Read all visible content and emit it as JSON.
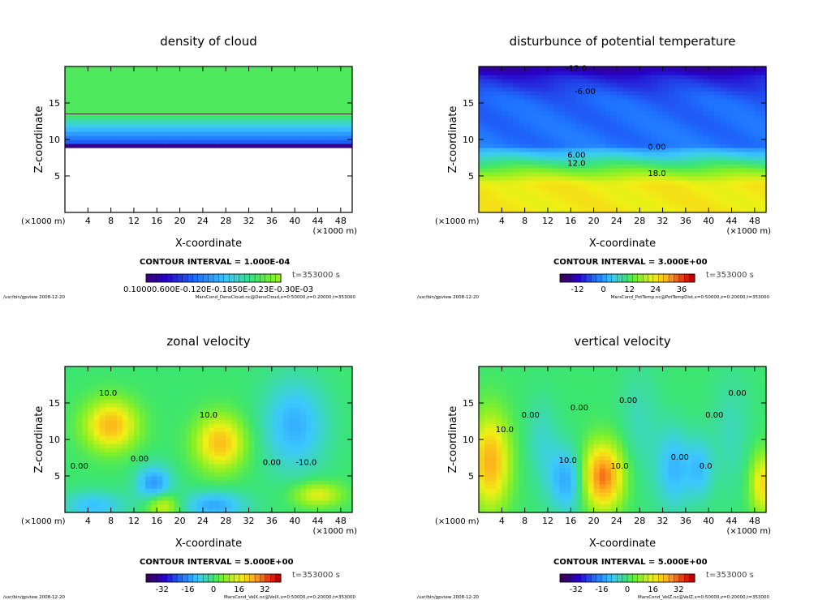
{
  "chart_data": [
    {
      "type": "heatmap",
      "title": "density of cloud",
      "xlabel": "X-coordinate",
      "ylabel": "Z-coordinate",
      "x_unit_note": "(×1000 m)",
      "xlim": [
        0,
        50
      ],
      "ylim": [
        0,
        20
      ],
      "x_ticks": [
        4,
        8,
        12,
        16,
        20,
        24,
        28,
        32,
        36,
        40,
        44,
        48
      ],
      "y_ticks": [
        5,
        10,
        15
      ],
      "contour_labels": [],
      "contour_interval": "CONTOUR INTERVAL = 1.000E-04",
      "time": "t=353000 s",
      "colorbar_labels": [
        "0.1000E-03",
        "0.6000E-03",
        "0.1200E-02",
        "0.1800E-02",
        "0.2300E-02",
        "0.3000E-03"
      ],
      "colorbar_text": "0.10000.600E-0.120E-0.1850E-0.23E-0.30E-03",
      "footer_left": "/usr/bin/gpview   2008-12-20",
      "footer_right": "MarsCond_DensCloud.nc@DensCloud,x=0:50000,z=0:20000,t=353000",
      "features": {
        "cloud_top_z": 13.5,
        "cloud_base_z": 9.0,
        "clear_below_z": 9.0
      }
    },
    {
      "type": "heatmap",
      "title": "disturbunce of potential temperature",
      "xlabel": "X-coordinate",
      "ylabel": "Z-coordinate",
      "x_unit_note": "(×1000 m)",
      "xlim": [
        0,
        50
      ],
      "ylim": [
        0,
        20
      ],
      "x_ticks": [
        4,
        8,
        12,
        16,
        20,
        24,
        28,
        32,
        36,
        40,
        44,
        48
      ],
      "y_ticks": [
        5,
        10,
        15
      ],
      "contour_labels": [
        {
          "text": "-12.0",
          "x": 17,
          "z": 19.4
        },
        {
          "text": "-6.00",
          "x": 18.5,
          "z": 16.2
        },
        {
          "text": "0.00",
          "x": 31,
          "z": 8.6
        },
        {
          "text": "6.00",
          "x": 17,
          "z": 7.5
        },
        {
          "text": "12.0",
          "x": 17,
          "z": 6.4
        },
        {
          "text": "18.0",
          "x": 31,
          "z": 5.0
        }
      ],
      "contour_interval": "CONTOUR INTERVAL = 3.000E+00",
      "time": "t=353000 s",
      "colorbar_labels": [
        "-12",
        "0",
        "12",
        "24",
        "36"
      ],
      "colorbar_range": [
        -20,
        42
      ],
      "footer_left": "/usr/bin/gpview   2008-12-20",
      "footer_right": "MarsCond_PotTemp.nc@PotTempDist,x=0:50000,z=0:20000,t=353000",
      "profile": [
        {
          "z": 0,
          "value": 24
        },
        {
          "z": 4,
          "value": 24
        },
        {
          "z": 5.2,
          "value": 18
        },
        {
          "z": 6.4,
          "value": 12
        },
        {
          "z": 7.6,
          "value": 6
        },
        {
          "z": 8.8,
          "value": 0
        },
        {
          "z": 9.2,
          "value": -4
        },
        {
          "z": 15,
          "value": -5
        },
        {
          "z": 16.2,
          "value": -6
        },
        {
          "z": 18.5,
          "value": -10
        },
        {
          "z": 20,
          "value": -16
        }
      ]
    },
    {
      "type": "heatmap",
      "title": "zonal velocity",
      "xlabel": "X-coordinate",
      "ylabel": "Z-coordinate",
      "x_unit_note": "(×1000 m)",
      "xlim": [
        0,
        50
      ],
      "ylim": [
        0,
        20
      ],
      "x_ticks": [
        4,
        8,
        12,
        16,
        20,
        24,
        28,
        32,
        36,
        40,
        44,
        48
      ],
      "y_ticks": [
        5,
        10,
        15
      ],
      "contour_labels": [
        {
          "text": "10.0",
          "x": 7.5,
          "z": 16
        },
        {
          "text": "10.0",
          "x": 25,
          "z": 13
        },
        {
          "text": "0.00",
          "x": 2.5,
          "z": 6
        },
        {
          "text": "0.00",
          "x": 13,
          "z": 7
        },
        {
          "text": "0.00",
          "x": 36,
          "z": 6.5
        },
        {
          "text": "-10.0",
          "x": 42,
          "z": 6.5
        }
      ],
      "contour_interval": "CONTOUR INTERVAL = 5.000E+00",
      "time": "t=353000 s",
      "colorbar_labels": [
        "-32",
        "-16",
        "0",
        "16",
        "32"
      ],
      "colorbar_range": [
        -42,
        42
      ],
      "footer_left": "/usr/bin/gpview   2008-12-20",
      "footer_right": "MarsCond_VelX.nc@VelX,x=0:50000,z=0:20000,t=353000",
      "blobs": [
        {
          "x": 8,
          "z": 12,
          "sx": 3.2,
          "sz": 2.4,
          "value": 25
        },
        {
          "x": 27,
          "z": 9.6,
          "sx": 3.0,
          "sz": 2.6,
          "value": 24
        },
        {
          "x": 15.5,
          "z": 4,
          "sx": 2.2,
          "sz": 1.8,
          "value": -16
        },
        {
          "x": 40,
          "z": 12,
          "sx": 4,
          "sz": 4.5,
          "value": -13
        },
        {
          "x": 5,
          "z": 1,
          "sx": 4,
          "sz": 1.4,
          "value": -11
        },
        {
          "x": 26,
          "z": 1,
          "sx": 4,
          "sz": 1.4,
          "value": -14
        },
        {
          "x": 17,
          "z": 1,
          "sx": 2,
          "sz": 1.2,
          "value": 16
        },
        {
          "x": 44,
          "z": 2.5,
          "sx": 3,
          "sz": 1.2,
          "value": 16
        }
      ]
    },
    {
      "type": "heatmap",
      "title": "vertical velocity",
      "xlabel": "X-coordinate",
      "ylabel": "Z-coordinate",
      "x_unit_note": "(×1000 m)",
      "xlim": [
        0,
        50
      ],
      "ylim": [
        0,
        20
      ],
      "x_ticks": [
        4,
        8,
        12,
        16,
        20,
        24,
        28,
        32,
        36,
        40,
        44,
        48
      ],
      "y_ticks": [
        5,
        10,
        15
      ],
      "contour_labels": [
        {
          "text": "10.0",
          "x": 4.5,
          "z": 11
        },
        {
          "text": "0.00",
          "x": 9,
          "z": 13
        },
        {
          "text": "0.00",
          "x": 17.5,
          "z": 14
        },
        {
          "text": "10.0",
          "x": 15.5,
          "z": 6.8
        },
        {
          "text": "10.0",
          "x": 24.5,
          "z": 6
        },
        {
          "text": "0.00",
          "x": 26,
          "z": 15
        },
        {
          "text": "0.00",
          "x": 35,
          "z": 7.2
        },
        {
          "text": "0.00",
          "x": 41,
          "z": 13
        },
        {
          "text": "0.00",
          "x": 45,
          "z": 16
        },
        {
          "text": "0.0",
          "x": 39.5,
          "z": 6
        }
      ],
      "contour_interval": "CONTOUR INTERVAL = 5.000E+00",
      "time": "t=353000 s",
      "colorbar_labels": [
        "-32",
        "-16",
        "0",
        "16",
        "32"
      ],
      "colorbar_range": [
        -42,
        42
      ],
      "footer_left": "/usr/bin/gpview   2008-12-20",
      "footer_right": "MarsCond_VelZ.nc@VelZ,x=0:50000,z=0:20000,t=353000",
      "blobs": [
        {
          "x": 2,
          "z": 7,
          "sx": 2.4,
          "sz": 4.5,
          "value": 26
        },
        {
          "x": 21.5,
          "z": 5,
          "sx": 2.6,
          "sz": 3.2,
          "value": 32
        },
        {
          "x": 15.5,
          "z": 4.5,
          "sx": 2.4,
          "sz": 3.2,
          "value": -15
        },
        {
          "x": 11,
          "z": 10,
          "sx": 2,
          "sz": 4,
          "value": -6
        },
        {
          "x": 34,
          "z": 6,
          "sx": 2.2,
          "sz": 4,
          "value": -12
        },
        {
          "x": 38.5,
          "z": 6,
          "sx": 1.6,
          "sz": 3,
          "value": -10
        },
        {
          "x": 28,
          "z": 12,
          "sx": 2.5,
          "sz": 6,
          "value": -5
        },
        {
          "x": 44,
          "z": 11,
          "sx": 2.5,
          "sz": 6,
          "value": -5
        },
        {
          "x": 49.5,
          "z": 4,
          "sx": 1.6,
          "sz": 3,
          "value": 20
        }
      ]
    }
  ]
}
